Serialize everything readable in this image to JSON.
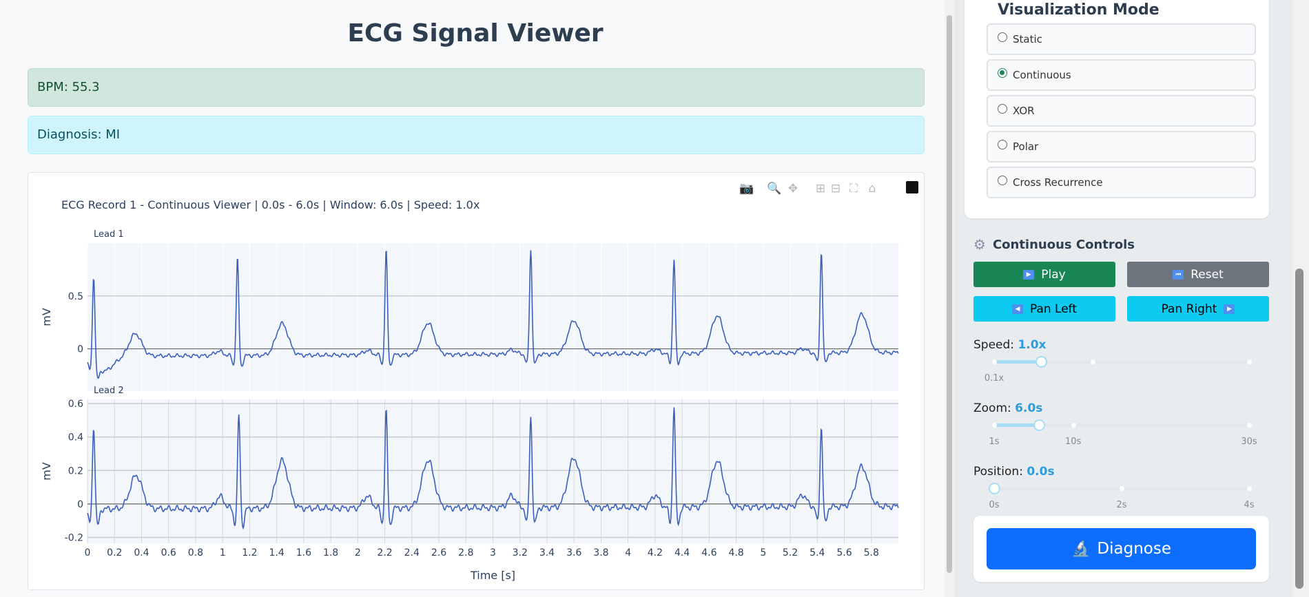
{
  "header": {
    "title": "ECG Signal Viewer"
  },
  "alerts": {
    "bpm": "BPM: 55.3",
    "diagnosis": "Diagnosis: MI"
  },
  "panel": {
    "mode_title": "Visualization Mode",
    "modes": [
      {
        "label": "Static",
        "checked": false
      },
      {
        "label": "Continuous",
        "checked": true
      },
      {
        "label": "XOR",
        "checked": false
      },
      {
        "label": "Polar",
        "checked": false
      },
      {
        "label": "Cross Recurrence",
        "checked": false
      }
    ],
    "controls_title": "Continuous Controls",
    "play": "Play",
    "reset": "Reset",
    "pan_left": "Pan Left",
    "pan_right": "Pan Right",
    "speed": {
      "label": "Speed:",
      "value": "1.0x",
      "fraction": 0.185,
      "ticks": [
        "0.1x"
      ]
    },
    "zoom": {
      "label": "Zoom:",
      "value": "6.0s",
      "fraction": 0.175,
      "ticks": [
        "1s",
        "10s",
        "30s"
      ]
    },
    "position": {
      "label": "Position:",
      "value": "0.0s",
      "fraction": 0,
      "ticks": [
        "0s",
        "2s",
        "4s"
      ]
    },
    "diagnose": "Diagnose"
  },
  "colors": {
    "line": "#3a5fbf",
    "success": "#198754",
    "secondary": "#6c757d",
    "info": "#0dcaf0",
    "primary": "#0d6efd"
  },
  "chart_data": {
    "type": "line",
    "title": "ECG Record 1 - Continuous Viewer | 0.0s - 6.0s | Window: 6.0s | Speed: 1.0x",
    "xlabel": "Time [s]",
    "xlim": [
      0,
      6
    ],
    "xticks": [
      "0",
      "0.2",
      "0.4",
      "0.6",
      "0.8",
      "1",
      "1.2",
      "1.4",
      "1.6",
      "1.8",
      "2",
      "2.2",
      "2.4",
      "2.6",
      "2.8",
      "3",
      "3.2",
      "3.4",
      "3.6",
      "3.8",
      "4",
      "4.2",
      "4.4",
      "4.6",
      "4.8",
      "5",
      "5.2",
      "5.4",
      "5.6",
      "5.8"
    ],
    "leads": [
      {
        "name": "Lead 1",
        "ylabel": "mV",
        "ylim": [
          -0.4,
          1.0
        ],
        "yticks": [
          0,
          0.5
        ],
        "baseline": -0.07,
        "r_peaks": [
          [
            0.046,
            0.77
          ],
          [
            1.11,
            0.85
          ],
          [
            2.21,
            0.92
          ],
          [
            3.28,
            0.92
          ],
          [
            4.34,
            0.83
          ],
          [
            5.43,
            0.885
          ]
        ],
        "t_waves": [
          [
            0.355,
            0.14
          ],
          [
            1.44,
            0.23
          ],
          [
            2.52,
            0.23
          ],
          [
            3.6,
            0.245
          ],
          [
            4.66,
            0.285
          ],
          [
            5.73,
            0.295
          ]
        ]
      },
      {
        "name": "Lead 2",
        "ylabel": "mV",
        "ylim": [
          -0.235,
          0.625
        ],
        "yticks": [
          -0.2,
          0,
          0.2,
          0.4,
          0.6
        ],
        "baseline": -0.03,
        "r_peaks": [
          [
            0.046,
            0.467
          ],
          [
            1.12,
            0.53
          ],
          [
            2.21,
            0.555
          ],
          [
            3.28,
            0.52
          ],
          [
            4.34,
            0.58
          ],
          [
            5.43,
            0.45
          ]
        ],
        "t_waves": [
          [
            0.36,
            0.17
          ],
          [
            1.44,
            0.255
          ],
          [
            2.52,
            0.255
          ],
          [
            3.6,
            0.265
          ],
          [
            4.66,
            0.245
          ],
          [
            5.73,
            0.21
          ]
        ]
      }
    ]
  }
}
